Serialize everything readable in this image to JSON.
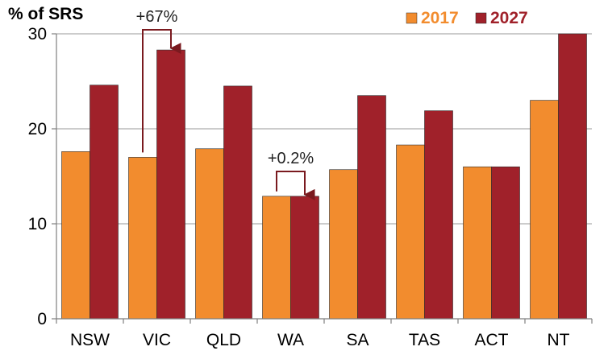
{
  "chart_data": {
    "type": "bar",
    "title": "",
    "ylabel": "% of SRS",
    "xlabel": "",
    "ylim": [
      0,
      30
    ],
    "yticks": [
      0,
      10,
      20,
      30
    ],
    "grid": true,
    "legend_position": "top-right",
    "categories": [
      "NSW",
      "VIC",
      "QLD",
      "WA",
      "SA",
      "TAS",
      "ACT",
      "NT"
    ],
    "series": [
      {
        "name": "2017",
        "color": "#F28C2E",
        "values": [
          17.6,
          17.0,
          17.9,
          12.9,
          15.7,
          18.3,
          16.0,
          23.0
        ]
      },
      {
        "name": "2027",
        "color": "#A0212A",
        "values": [
          24.6,
          28.3,
          24.5,
          12.9,
          23.5,
          21.9,
          16.0,
          30.0
        ]
      }
    ],
    "annotations": [
      {
        "text": "+67%",
        "category": "VIC"
      },
      {
        "text": "+0.2%",
        "category": "WA"
      }
    ]
  }
}
